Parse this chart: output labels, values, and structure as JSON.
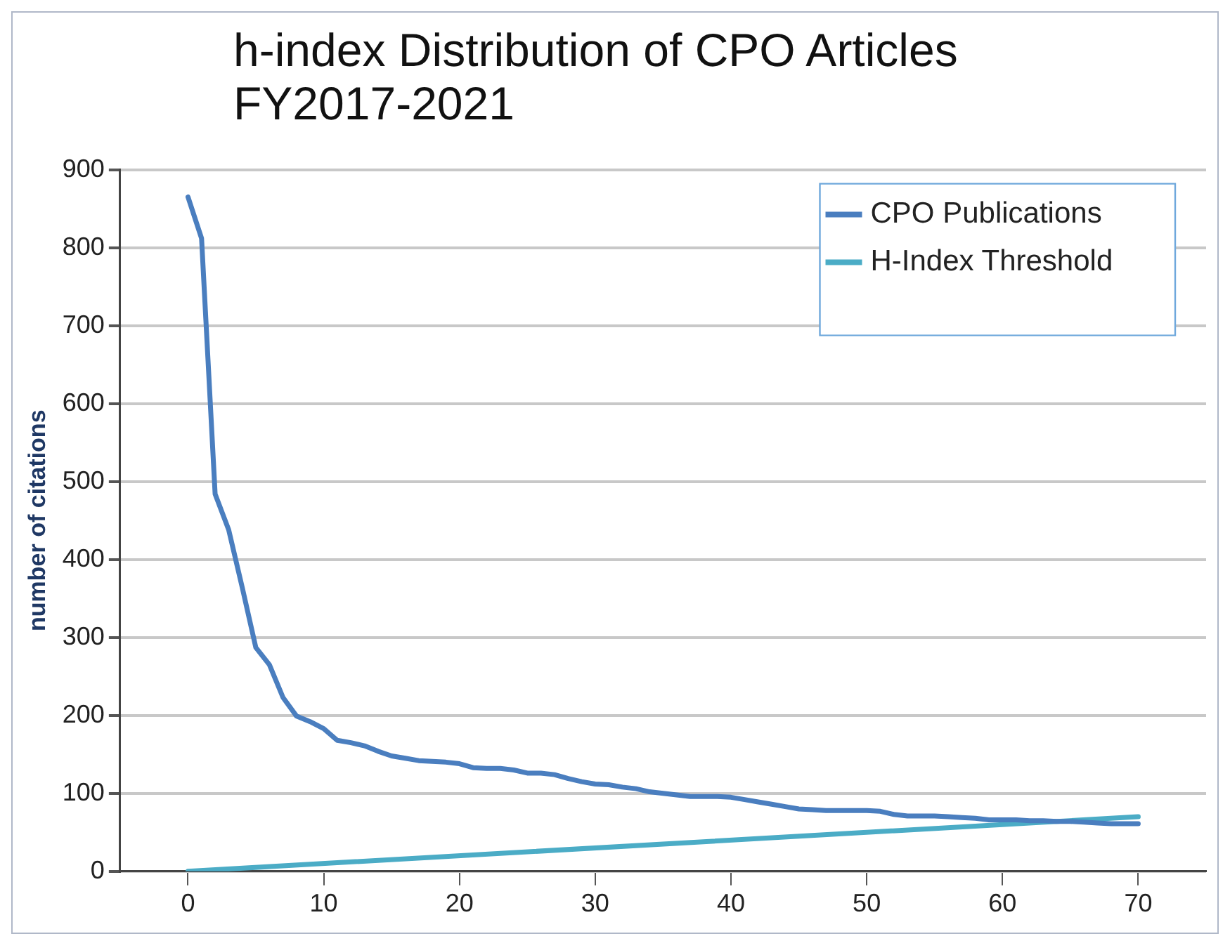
{
  "chart_data": {
    "type": "line",
    "title": "h-index Distribution of CPO Articles FY2017-2021",
    "ylabel": "number of citations",
    "xlim": [
      -5,
      75
    ],
    "xticks": [
      0,
      10,
      20,
      30,
      40,
      50,
      60,
      70
    ],
    "ylim": [
      0,
      900
    ],
    "yticks": [
      0,
      100,
      200,
      300,
      400,
      500,
      600,
      700,
      800,
      900
    ],
    "grid": "y",
    "legend": "top right",
    "marker": "none",
    "line_style": "solid",
    "series": [
      {
        "name": "CPO Publications",
        "color": "#4a7ebf",
        "x": [
          0,
          1,
          2,
          3,
          4,
          5,
          6,
          7,
          8,
          9,
          10,
          11,
          12,
          13,
          14,
          15,
          16,
          17,
          18,
          19,
          20,
          21,
          22,
          23,
          24,
          25,
          26,
          27,
          28,
          29,
          30,
          31,
          32,
          33,
          34,
          35,
          36,
          37,
          38,
          39,
          40,
          41,
          42,
          43,
          44,
          45,
          46,
          47,
          48,
          49,
          50,
          51,
          52,
          53,
          54,
          55,
          56,
          57,
          58,
          59,
          60,
          61,
          62,
          63,
          64,
          65,
          66,
          67,
          68,
          69,
          70
        ],
        "values": [
          865,
          812,
          484,
          438,
          364,
          287,
          265,
          223,
          199,
          192,
          183,
          168,
          165,
          161,
          154,
          148,
          145,
          142,
          141,
          140,
          138,
          133,
          132,
          132,
          130,
          126,
          126,
          124,
          119,
          115,
          112,
          111,
          108,
          106,
          102,
          100,
          98,
          96,
          96,
          96,
          95,
          92,
          89,
          86,
          83,
          80,
          79,
          78,
          78,
          78,
          78,
          77,
          73,
          71,
          71,
          71,
          70,
          69,
          68,
          66,
          66,
          66,
          65,
          65,
          64,
          64,
          63,
          62,
          61,
          61,
          61
        ]
      },
      {
        "name": "H-Index Threshold",
        "color": "#4bacc6",
        "x": [
          0,
          70
        ],
        "values": [
          0,
          70
        ]
      }
    ]
  }
}
